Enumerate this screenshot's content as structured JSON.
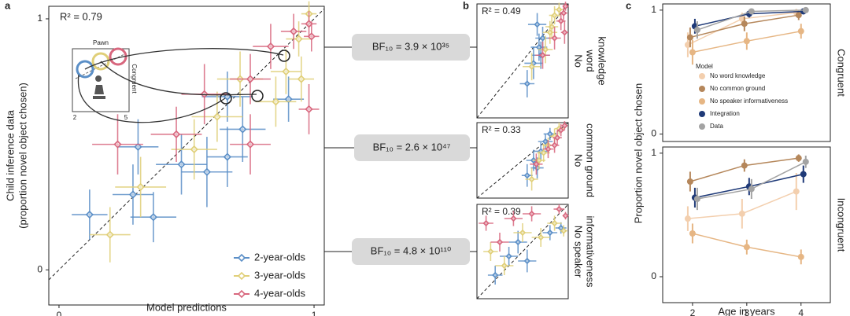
{
  "panel_labels": [
    "a",
    "b",
    "c"
  ],
  "inset": {
    "title": "Pawn",
    "label": "Congruent",
    "ticks": [
      "2",
      "5"
    ]
  },
  "bayes_factors": [
    "BF₁₀ = 3.9 × 10³⁵",
    "BF₁₀ = 2.6 × 10⁴⁷",
    "BF₁₀ = 4.8 × 10¹¹⁰"
  ],
  "chart_data": [
    {
      "type": "scatter",
      "annotation": "R² = 0.79",
      "x_label": "Model predictions",
      "y_label": [
        "Child inference data",
        "(proportion novel object chosen)"
      ],
      "xlim": [
        -0.04,
        1.04
      ],
      "ylim": [
        -0.14,
        1.05
      ],
      "xticks": [
        0,
        1
      ],
      "yticks": [
        0,
        1
      ],
      "diagonal": true,
      "legend": "lower right",
      "series": [
        {
          "name": "2-year-olds",
          "color": "#5b8fc7",
          "x": [
            0.12,
            0.29,
            0.37,
            0.58,
            0.66,
            0.66,
            0.72,
            0.9,
            0.48,
            0.31
          ],
          "values": [
            0.22,
            0.3,
            0.21,
            0.39,
            0.45,
            0.69,
            0.56,
            0.68,
            0.42,
            0.49
          ],
          "xerr": [
            0.07,
            0.08,
            0.09,
            0.1,
            0.08,
            0.1,
            0.09,
            0.06,
            0.1,
            0.08
          ],
          "yerr": [
            0.1,
            0.12,
            0.1,
            0.14,
            0.12,
            0.1,
            0.13,
            0.09,
            0.12,
            0.11
          ]
        },
        {
          "name": "3-year-olds",
          "color": "#e0cf78",
          "x": [
            0.2,
            0.32,
            0.53,
            0.62,
            0.71,
            0.85,
            0.89,
            0.95,
            0.94,
            0.98
          ],
          "values": [
            0.14,
            0.33,
            0.48,
            0.61,
            0.76,
            0.67,
            0.79,
            0.76,
            0.92,
            1.02
          ],
          "xerr": [
            0.08,
            0.1,
            0.09,
            0.1,
            0.09,
            0.08,
            0.06,
            0.05,
            0.05,
            0.03
          ],
          "yerr": [
            0.11,
            0.12,
            0.12,
            0.1,
            0.11,
            0.1,
            0.09,
            0.09,
            0.07,
            0.05
          ]
        },
        {
          "name": "4-year-olds",
          "color": "#d8677e",
          "x": [
            0.23,
            0.46,
            0.57,
            0.75,
            0.83,
            0.92,
            0.98,
            0.99,
            0.98,
            0.75
          ],
          "values": [
            0.5,
            0.54,
            0.7,
            0.76,
            0.89,
            0.95,
            0.98,
            0.93,
            0.64,
            0.5
          ],
          "xerr": [
            0.1,
            0.1,
            0.09,
            0.08,
            0.07,
            0.05,
            0.03,
            0.03,
            0.04,
            0.08
          ],
          "yerr": [
            0.12,
            0.11,
            0.12,
            0.1,
            0.09,
            0.07,
            0.05,
            0.06,
            0.1,
            0.12
          ]
        }
      ]
    },
    {
      "type": "scatter",
      "annotation": "R² = 0.49",
      "side_label": [
        "No",
        "word",
        "knowledge"
      ],
      "xlim": [
        0,
        1
      ],
      "ylim": [
        0,
        1
      ],
      "diagonal": true,
      "series": [
        {
          "name": "2-year-olds",
          "color": "#5b8fc7",
          "x": [
            0.55,
            0.62,
            0.68,
            0.72,
            0.66,
            0.7
          ],
          "values": [
            0.3,
            0.48,
            0.62,
            0.7,
            0.82,
            0.55
          ],
          "xerr": [
            0.08,
            0.1,
            0.09,
            0.08,
            0.1,
            0.1
          ],
          "yerr": [
            0.12,
            0.14,
            0.12,
            0.1,
            0.1,
            0.12
          ]
        },
        {
          "name": "3-year-olds",
          "color": "#e0cf78",
          "x": [
            0.6,
            0.75,
            0.8,
            0.85,
            0.9,
            0.82
          ],
          "values": [
            0.45,
            0.6,
            0.75,
            0.9,
            0.95,
            0.8
          ],
          "xerr": [
            0.1,
            0.08,
            0.08,
            0.06,
            0.05,
            0.07
          ],
          "yerr": [
            0.12,
            0.12,
            0.1,
            0.08,
            0.06,
            0.1
          ]
        },
        {
          "name": "4-year-olds",
          "color": "#d8677e",
          "x": [
            0.72,
            0.85,
            0.92,
            0.95,
            0.97,
            0.96
          ],
          "values": [
            0.55,
            0.7,
            0.85,
            0.92,
            0.98,
            0.75
          ],
          "xerr": [
            0.08,
            0.07,
            0.05,
            0.04,
            0.03,
            0.04
          ],
          "yerr": [
            0.12,
            0.1,
            0.08,
            0.06,
            0.04,
            0.1
          ]
        }
      ]
    },
    {
      "type": "scatter",
      "annotation": "R² = 0.33",
      "side_label": [
        "No",
        "common ground"
      ],
      "xlim": [
        0,
        1
      ],
      "ylim": [
        0,
        1
      ],
      "diagonal": true,
      "series": [
        {
          "name": "2-year-olds",
          "color": "#5b8fc7",
          "x": [
            0.55,
            0.62,
            0.7,
            0.75,
            0.8,
            0.66
          ],
          "values": [
            0.3,
            0.5,
            0.62,
            0.75,
            0.85,
            0.4
          ],
          "xerr": [
            0.06,
            0.08,
            0.07,
            0.08,
            0.07,
            0.07
          ],
          "yerr": [
            0.15,
            0.14,
            0.12,
            0.1,
            0.08,
            0.14
          ]
        },
        {
          "name": "3-year-olds",
          "color": "#e0cf78",
          "x": [
            0.6,
            0.68,
            0.78,
            0.85,
            0.9,
            0.73
          ],
          "values": [
            0.25,
            0.5,
            0.7,
            0.82,
            0.92,
            0.6
          ],
          "xerr": [
            0.07,
            0.07,
            0.06,
            0.05,
            0.05,
            0.07
          ],
          "yerr": [
            0.15,
            0.12,
            0.1,
            0.1,
            0.08,
            0.12
          ]
        },
        {
          "name": "4-year-olds",
          "color": "#d8677e",
          "x": [
            0.65,
            0.78,
            0.88,
            0.92,
            0.96,
            0.85
          ],
          "values": [
            0.45,
            0.65,
            0.8,
            0.9,
            0.96,
            0.7
          ],
          "xerr": [
            0.07,
            0.06,
            0.05,
            0.04,
            0.03,
            0.05
          ],
          "yerr": [
            0.14,
            0.12,
            0.1,
            0.08,
            0.06,
            0.1
          ]
        }
      ]
    },
    {
      "type": "scatter",
      "annotation": "R² = 0.39",
      "side_label": [
        "No speaker",
        "informativeness"
      ],
      "xlim": [
        0,
        1
      ],
      "ylim": [
        0,
        1
      ],
      "diagonal": true,
      "series": [
        {
          "name": "2-year-olds",
          "color": "#5b8fc7",
          "x": [
            0.2,
            0.35,
            0.45,
            0.55,
            0.8,
            0.92
          ],
          "values": [
            0.25,
            0.45,
            0.6,
            0.4,
            0.7,
            0.75
          ],
          "xerr": [
            0.08,
            0.1,
            0.1,
            0.1,
            0.08,
            0.06
          ],
          "yerr": [
            0.1,
            0.1,
            0.12,
            0.12,
            0.08,
            0.06
          ]
        },
        {
          "name": "3-year-olds",
          "color": "#e0cf78",
          "x": [
            0.15,
            0.3,
            0.5,
            0.7,
            0.85,
            0.95
          ],
          "values": [
            0.5,
            0.35,
            0.7,
            0.65,
            0.8,
            0.72
          ],
          "xerr": [
            0.08,
            0.1,
            0.1,
            0.1,
            0.08,
            0.04
          ],
          "yerr": [
            0.1,
            0.1,
            0.1,
            0.1,
            0.08,
            0.06
          ]
        },
        {
          "name": "4-year-olds",
          "color": "#d8677e",
          "x": [
            0.1,
            0.25,
            0.4,
            0.6,
            0.9,
            0.97
          ],
          "values": [
            0.8,
            0.6,
            0.85,
            0.9,
            0.95,
            0.88
          ],
          "xerr": [
            0.08,
            0.1,
            0.1,
            0.1,
            0.06,
            0.03
          ],
          "yerr": [
            0.08,
            0.1,
            0.08,
            0.08,
            0.05,
            0.04
          ]
        }
      ]
    },
    {
      "type": "line",
      "facet": "Congruent",
      "y_label": "Proportion novel object chosen",
      "legend_title": "Model",
      "legend": "upper left",
      "x": [
        2,
        3,
        4
      ],
      "xlim": [
        1.45,
        4.54
      ],
      "ylim": [
        -0.06,
        1.05
      ],
      "yticks": [
        0,
        1
      ],
      "series": [
        {
          "name": "No word knowledge",
          "color": "#f3cfae",
          "values": [
            0.72,
            0.93,
            0.98
          ],
          "errors": [
            0.1,
            0.05,
            0.03
          ]
        },
        {
          "name": "No common ground",
          "color": "#b5875b",
          "values": [
            0.78,
            0.89,
            0.96
          ],
          "errors": [
            0.08,
            0.06,
            0.04
          ]
        },
        {
          "name": "No speaker informativeness",
          "color": "#e6b684",
          "values": [
            0.66,
            0.75,
            0.83
          ],
          "errors": [
            0.1,
            0.07,
            0.06
          ]
        },
        {
          "name": "Integration",
          "color": "#1f3a78",
          "values": [
            0.87,
            0.97,
            0.99
          ],
          "errors": [
            0.06,
            0.03,
            0.02
          ]
        },
        {
          "name": "Data",
          "color": "#a3a3a3",
          "values": [
            0.84,
            0.99,
            1.0
          ],
          "errors": [
            0.07,
            0.02,
            0.01
          ]
        }
      ]
    },
    {
      "type": "line",
      "facet": "Incongruent",
      "x_label": "Age in years",
      "x": [
        2,
        3,
        4
      ],
      "xlim": [
        1.45,
        4.54
      ],
      "ylim": [
        -0.21,
        1.05
      ],
      "xticks": [
        2,
        3,
        4
      ],
      "yticks": [
        0,
        1
      ],
      "series": [
        {
          "name": "No word knowledge",
          "color": "#f3cfae",
          "values": [
            0.47,
            0.51,
            0.69
          ],
          "errors": [
            0.1,
            0.12,
            0.15
          ]
        },
        {
          "name": "No common ground",
          "color": "#b5875b",
          "values": [
            0.77,
            0.9,
            0.96
          ],
          "errors": [
            0.08,
            0.05,
            0.03
          ]
        },
        {
          "name": "No speaker informativeness",
          "color": "#e6b684",
          "values": [
            0.35,
            0.24,
            0.16
          ],
          "errors": [
            0.08,
            0.06,
            0.06
          ]
        },
        {
          "name": "Integration",
          "color": "#1f3a78",
          "values": [
            0.64,
            0.73,
            0.83
          ],
          "errors": [
            0.08,
            0.07,
            0.07
          ]
        },
        {
          "name": "Data",
          "color": "#a3a3a3",
          "values": [
            0.63,
            0.71,
            0.93
          ],
          "errors": [
            0.09,
            0.08,
            0.05
          ]
        }
      ]
    }
  ]
}
